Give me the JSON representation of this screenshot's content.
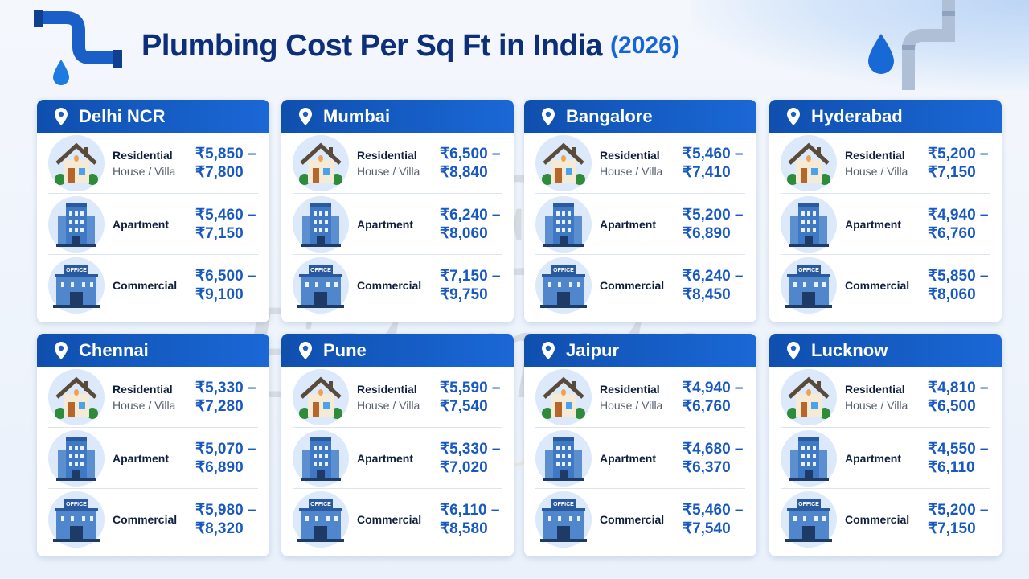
{
  "header": {
    "title": "Plumbing Cost Per Sq Ft in India",
    "year": "(2026)"
  },
  "watermark": {
    "logo": "CEI",
    "script": "Estimate",
    "tagline": "CONSTRUCTION INDIA"
  },
  "colors": {
    "header_blue": "#1a5fc8",
    "title_navy": "#0d2f7a",
    "price_blue": "#1758c2"
  },
  "categories": {
    "residential": "Residential",
    "residential_sub": "House / Villa",
    "apartment": "Apartment",
    "commercial": "Commercial",
    "office_sign": "OFFICE"
  },
  "cities": [
    {
      "name": "Delhi NCR",
      "residential": [
        "₹5,850 –",
        "₹7,800"
      ],
      "apartment": [
        "₹5,460 –",
        "₹7,150"
      ],
      "commercial": [
        "₹6,500 –",
        "₹9,100"
      ]
    },
    {
      "name": "Mumbai",
      "residential": [
        "₹6,500 –",
        "₹8,840"
      ],
      "apartment": [
        "₹6,240 –",
        "₹8,060"
      ],
      "commercial": [
        "₹7,150 –",
        "₹9,750"
      ]
    },
    {
      "name": "Bangalore",
      "residential": [
        "₹5,460 –",
        "₹7,410"
      ],
      "apartment": [
        "₹5,200 –",
        "₹6,890"
      ],
      "commercial": [
        "₹6,240 –",
        "₹8,450"
      ]
    },
    {
      "name": "Hyderabad",
      "residential": [
        "₹5,200 –",
        "₹7,150"
      ],
      "apartment": [
        "₹4,940 –",
        "₹6,760"
      ],
      "commercial": [
        "₹5,850 –",
        "₹8,060"
      ]
    },
    {
      "name": "Chennai",
      "residential": [
        "₹5,330 –",
        "₹7,280"
      ],
      "apartment": [
        "₹5,070 –",
        "₹6,890"
      ],
      "commercial": [
        "₹5,980 –",
        "₹8,320"
      ]
    },
    {
      "name": "Pune",
      "residential": [
        "₹5,590 –",
        "₹7,540"
      ],
      "apartment": [
        "₹5,330 –",
        "₹7,020"
      ],
      "commercial": [
        "₹6,110 –",
        "₹8,580"
      ]
    },
    {
      "name": "Jaipur",
      "residential": [
        "₹4,940 –",
        "₹6,760"
      ],
      "apartment": [
        "₹4,680 –",
        "₹6,370"
      ],
      "commercial": [
        "₹5,460 –",
        "₹7,540"
      ]
    },
    {
      "name": "Lucknow",
      "residential": [
        "₹4,810 –",
        "₹6,500"
      ],
      "apartment": [
        "₹4,550 –",
        "₹6,110"
      ],
      "commercial": [
        "₹5,200 –",
        "₹7,150"
      ]
    }
  ]
}
